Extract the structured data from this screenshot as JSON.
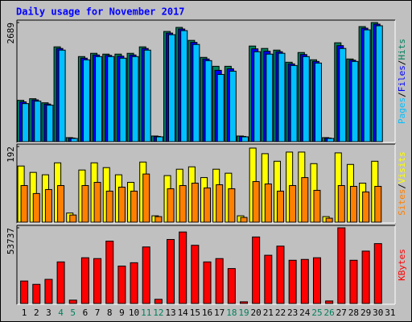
{
  "chart_data": [
    {
      "type": "bar",
      "title": "Daily usage for November 2017",
      "ylim": [
        0,
        2689
      ],
      "yticks": [
        2689
      ],
      "legend_separator": "/",
      "series": [
        {
          "name": "Hits",
          "color": "#00805c",
          "values": [
            945,
            981,
            890,
            2144,
            109,
            1926,
            1999,
            1981,
            1981,
            1999,
            2144,
            145,
            2489,
            2580,
            2289,
            1908,
            1708,
            1708,
            145,
            2162,
            2108,
            2071,
            1799,
            2017,
            1854,
            109,
            2235,
            1872,
            2598,
            2689,
            null
          ]
        },
        {
          "name": "Files",
          "color": "#0000ff",
          "values": [
            910,
            955,
            862,
            2108,
            100,
            1890,
            1962,
            1953,
            1935,
            1962,
            2108,
            136,
            2453,
            2544,
            2244,
            1872,
            1617,
            1653,
            136,
            2099,
            2045,
            2035,
            1762,
            1972,
            1817,
            100,
            2171,
            1845,
            2562,
            2653,
            null
          ]
        },
        {
          "name": "Pages",
          "color": "#00c0ff",
          "values": [
            872,
            927,
            836,
            2071,
            91,
            1854,
            1926,
            1926,
            1890,
            1926,
            2071,
            127,
            2417,
            2508,
            2198,
            1835,
            1526,
            1599,
            127,
            2035,
            1981,
            2000,
            1726,
            1926,
            1781,
            91,
            2108,
            1817,
            2526,
            2617,
            null
          ]
        }
      ]
    },
    {
      "type": "bar",
      "ylim": [
        0,
        192
      ],
      "yticks": [
        192
      ],
      "legend_separator": "/",
      "series": [
        {
          "name": "Visits",
          "color": "#ffff00",
          "values": [
            143,
            127,
            121,
            151,
            25,
            133,
            151,
            139,
            121,
            102,
            153,
            18,
            119,
            135,
            141,
            114,
            135,
            125,
            18,
            188,
            174,
            155,
            178,
            178,
            149,
            16,
            176,
            147,
            100,
            155,
            null
          ]
        },
        {
          "name": "Sites",
          "color": "#ff8000",
          "values": [
            94,
            74,
            84,
            94,
            20,
            94,
            102,
            80,
            90,
            80,
            123,
            16,
            86,
            94,
            100,
            88,
            96,
            86,
            14,
            104,
            98,
            80,
            94,
            114,
            82,
            12,
            94,
            92,
            78,
            92,
            null
          ]
        }
      ]
    },
    {
      "type": "bar",
      "ylim": [
        0,
        53737
      ],
      "yticks": [
        53737
      ],
      "categories": [
        "1",
        "2",
        "3",
        "4",
        "5",
        "6",
        "7",
        "8",
        "9",
        "10",
        "11",
        "12",
        "13",
        "14",
        "15",
        "16",
        "17",
        "18",
        "19",
        "20",
        "21",
        "22",
        "23",
        "24",
        "25",
        "26",
        "27",
        "28",
        "29",
        "30",
        "31"
      ],
      "category_colors": [
        "#000000",
        "#000000",
        "#000000",
        "#00805c",
        "#00805c",
        "#000000",
        "#000000",
        "#000000",
        "#000000",
        "#000000",
        "#00805c",
        "#00805c",
        "#000000",
        "#000000",
        "#000000",
        "#000000",
        "#000000",
        "#00805c",
        "#00805c",
        "#000000",
        "#000000",
        "#000000",
        "#000000",
        "#000000",
        "#00805c",
        "#00805c",
        "#000000",
        "#000000",
        "#000000",
        "#000000",
        "#000000"
      ],
      "series": [
        {
          "name": "KBytes",
          "color": "#ff0000",
          "values": [
            16352,
            14016,
            17520,
            29784,
            2920,
            32704,
            32120,
            44384,
            26864,
            29200,
            40296,
            3504,
            45552,
            50808,
            41464,
            29784,
            32120,
            25112,
            1752,
            47304,
            34456,
            40880,
            30952,
            31536,
            32704,
            2336,
            53737,
            30952,
            37376,
            42632,
            null
          ]
        }
      ]
    }
  ]
}
